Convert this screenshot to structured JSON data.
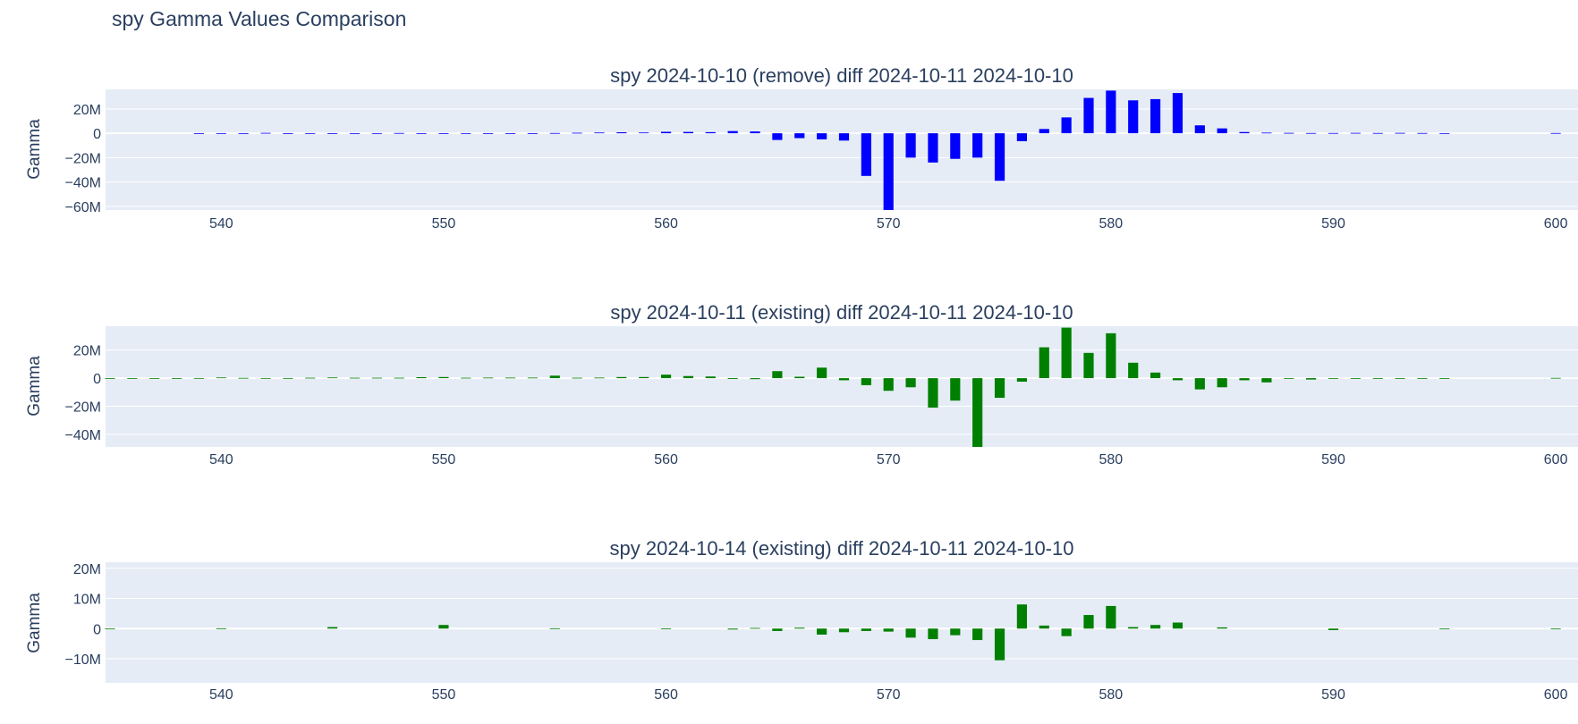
{
  "title": "spy Gamma Values Comparison",
  "colors": {
    "plot_bg": "#e5ecf6",
    "grid": "#ffffff",
    "text": "#2a3f5f"
  },
  "chart_data": [
    {
      "type": "bar",
      "title": "spy 2024-10-10 (remove) diff 2024-10-11 2024-10-10",
      "ylabel": "Gamma",
      "color": "#0000ff",
      "xlim": [
        534.8,
        601
      ],
      "ylim": [
        -63,
        36
      ],
      "xticks": [
        540,
        550,
        560,
        570,
        580,
        590,
        600
      ],
      "xtick_labels": [
        "540",
        "550",
        "560",
        "570",
        "580",
        "590",
        "600"
      ],
      "yticks": [
        20000000,
        0,
        -20000000,
        -40000000,
        -60000000
      ],
      "ytick_labels": [
        "20M",
        "0",
        "−20M",
        "−40M",
        "−60M"
      ],
      "x": [
        539,
        540,
        541,
        542,
        543,
        544,
        545,
        546,
        547,
        548,
        549,
        550,
        551,
        552,
        553,
        554,
        555,
        556,
        557,
        558,
        559,
        560,
        561,
        562,
        563,
        564,
        565,
        566,
        567,
        568,
        569,
        570,
        571,
        572,
        573,
        574,
        575,
        576,
        577,
        578,
        579,
        580,
        581,
        582,
        583,
        584,
        585,
        586,
        587,
        588,
        589,
        590,
        591,
        592,
        593,
        594,
        595,
        600
      ],
      "values": [
        -0.1,
        0.1,
        -0.1,
        0.3,
        -0.1,
        0.1,
        -0.1,
        -0.2,
        0.1,
        0.2,
        -0.1,
        -0.2,
        0.1,
        -0.1,
        -0.1,
        -0.1,
        0.2,
        0.4,
        0.6,
        0.8,
        0.6,
        1.2,
        1.1,
        0.9,
        1.8,
        1.5,
        -5.5,
        -4.0,
        -5.0,
        -6.0,
        -35,
        -63,
        -20,
        -24,
        -21,
        -20,
        -39,
        -6.5,
        3.5,
        13,
        29,
        35,
        27,
        28,
        33,
        6.5,
        4,
        1,
        0.5,
        0.3,
        0.2,
        0.2,
        0.3,
        0.2,
        0.3,
        0.2,
        0.1,
        0.2
      ]
    },
    {
      "type": "bar",
      "title": "spy 2024-10-11 (existing) diff 2024-10-11 2024-10-10",
      "ylabel": "Gamma",
      "color": "#008000",
      "xlim": [
        534.8,
        601
      ],
      "ylim": [
        -49,
        37
      ],
      "xticks": [
        540,
        550,
        560,
        570,
        580,
        590,
        600
      ],
      "xtick_labels": [
        "540",
        "550",
        "560",
        "570",
        "580",
        "590",
        "600"
      ],
      "yticks": [
        20000000,
        0,
        -20000000,
        -40000000
      ],
      "ytick_labels": [
        "20M",
        "0",
        "−20M",
        "−40M"
      ],
      "x": [
        535,
        536,
        537,
        538,
        539,
        540,
        541,
        542,
        543,
        544,
        545,
        546,
        547,
        548,
        549,
        550,
        551,
        552,
        553,
        554,
        555,
        556,
        557,
        558,
        559,
        560,
        561,
        562,
        563,
        564,
        565,
        566,
        567,
        568,
        569,
        570,
        571,
        572,
        573,
        574,
        575,
        576,
        577,
        578,
        579,
        580,
        581,
        582,
        583,
        584,
        585,
        586,
        587,
        588,
        589,
        590,
        591,
        592,
        593,
        594,
        595,
        600
      ],
      "values": [
        -0.1,
        -0.1,
        -0.1,
        -0.1,
        0.1,
        0.5,
        0.2,
        0.1,
        0.1,
        0.3,
        0.5,
        0.3,
        0.3,
        0.3,
        0.7,
        0.8,
        0.3,
        0.4,
        0.4,
        0.4,
        1.8,
        0.3,
        0.4,
        0.8,
        0.8,
        2.5,
        1.5,
        1.2,
        -0.6,
        -0.7,
        5,
        1,
        7.5,
        -1.5,
        -5,
        -9,
        -6.5,
        -21,
        -16,
        -49,
        -14,
        -2.5,
        22,
        36,
        18,
        32,
        11,
        4,
        -1.5,
        -8,
        -6.5,
        -1.5,
        -3,
        -0.5,
        -1,
        -0.5,
        -0.3,
        -0.3,
        -0.5,
        -0.3,
        -0.2,
        0.2
      ]
    },
    {
      "type": "bar",
      "title": "spy 2024-10-14 (existing) diff 2024-10-11 2024-10-10",
      "ylabel": "Gamma",
      "color": "#008000",
      "xlim": [
        534.8,
        601
      ],
      "ylim": [
        -18,
        22
      ],
      "xticks": [
        540,
        550,
        560,
        570,
        580,
        590,
        600
      ],
      "xtick_labels": [
        "540",
        "550",
        "560",
        "570",
        "580",
        "590",
        "600"
      ],
      "yticks": [
        20000000,
        10000000,
        0,
        -10000000
      ],
      "ytick_labels": [
        "20M",
        "10M",
        "0",
        "−10M"
      ],
      "x": [
        535,
        540,
        545,
        550,
        555,
        560,
        563,
        564,
        565,
        566,
        567,
        568,
        569,
        570,
        571,
        572,
        573,
        574,
        575,
        576,
        577,
        578,
        579,
        580,
        581,
        582,
        583,
        585,
        590,
        595,
        600
      ],
      "values": [
        -0.05,
        0.1,
        0.5,
        1.2,
        0.1,
        0.05,
        -0.3,
        0.2,
        -0.8,
        0.3,
        -2,
        -1.2,
        -0.8,
        -1,
        -3,
        -3.5,
        -2.2,
        -3.8,
        -10.5,
        8,
        1,
        -2.5,
        4.5,
        7.5,
        0.5,
        1.2,
        2,
        0.4,
        -0.5,
        -0.1,
        -0.1
      ]
    }
  ]
}
